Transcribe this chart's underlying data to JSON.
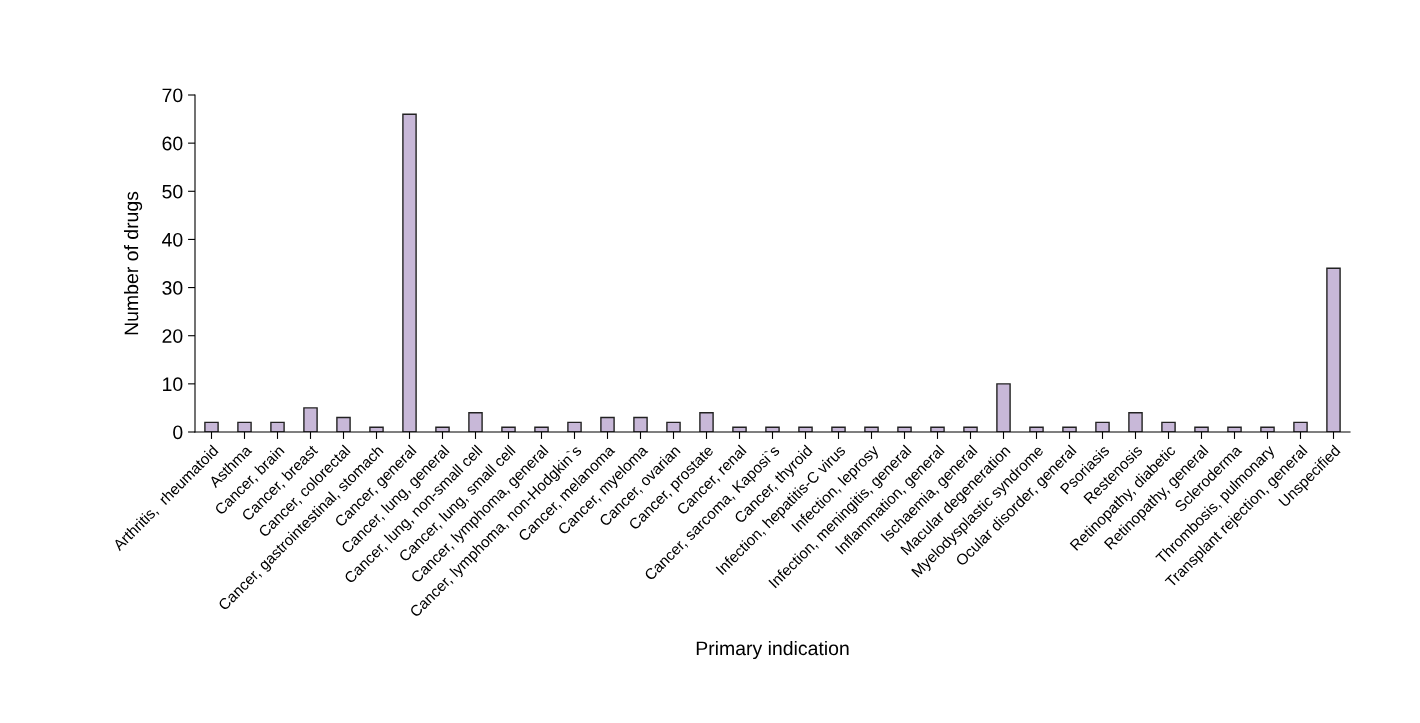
{
  "chart_data": {
    "type": "bar",
    "xlabel": "Primary indication",
    "ylabel": "Number of drugs",
    "categories": [
      "Arthritis,  rheumatoid",
      "Asthma",
      "Cancer, brain",
      "Cancer, breast",
      "Cancer, colorectal",
      "Cancer, gastrointestinal, stomach",
      "Cancer, general",
      "Cancer, lung, general",
      "Cancer, lung, non-small cell",
      "Cancer, lung, small cell",
      "Cancer, lymphoma, general",
      "Cancer, lymphoma, non-Hodgkin`s",
      "Cancer, melanoma",
      "Cancer, myeloma",
      "Cancer, ovarian",
      "Cancer, prostate",
      "Cancer, renal",
      "Cancer, sarcoma, Kaposi`s",
      "Cancer, thyroid",
      "Infection, hepatitis-C virus",
      "Infection, leprosy",
      "Infection, meningitis, general",
      "Inflammation, general",
      "Ischaemia, general",
      "Macular degeneration",
      "Myelodysplastic syndrome",
      "Ocular disorder, general",
      "Psoriasis",
      "Restenosis",
      "Retinopathy, diabetic",
      "Retinopathy, general",
      "Scleroderma",
      "Thrombosis, pulmonary",
      "Transplant rejection, general",
      "Unspecified"
    ],
    "values": [
      2,
      2,
      2,
      5,
      3,
      1,
      66,
      1,
      4,
      1,
      1,
      2,
      3,
      3,
      2,
      4,
      1,
      1,
      1,
      1,
      1,
      1,
      1,
      1,
      10,
      1,
      1,
      2,
      4,
      2,
      1,
      1,
      1,
      2,
      34
    ],
    "color": "#c8b8d8",
    "ylim": [
      0,
      70
    ],
    "yticks": [
      0,
      10,
      20,
      30,
      40,
      50,
      60,
      70
    ],
    "grid": false
  }
}
